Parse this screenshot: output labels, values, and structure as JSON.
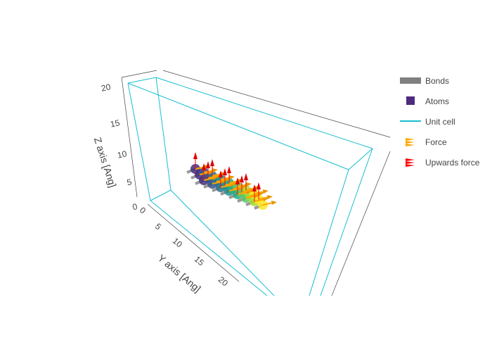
{
  "chart_data": {
    "type": "scatter3d",
    "title": "",
    "axes": {
      "x": {
        "label": "",
        "ticks": []
      },
      "y": {
        "label": "Y axis [Ang]",
        "ticks": [
          "0",
          "5",
          "10",
          "15",
          "20"
        ]
      },
      "z": {
        "label": "Z axis [Ang]",
        "ticks": [
          "0",
          "5",
          "10",
          "15",
          "20"
        ],
        "range": [
          0,
          20
        ]
      }
    },
    "legend": {
      "placement": "right",
      "items": [
        {
          "name": "Bonds",
          "color": "#808080",
          "symbol": "bar"
        },
        {
          "name": "Atoms",
          "color": "#4b2c7f",
          "symbol": "square"
        },
        {
          "name": "Unit cell",
          "color": "#17becf",
          "symbol": "line"
        },
        {
          "name": "Force",
          "color": "#ffa500",
          "symbol": "cone"
        },
        {
          "name": "Upwards force",
          "color": "#ff0000",
          "symbol": "cone"
        }
      ]
    },
    "colors": {
      "unit_cell": "#17becf",
      "bonds": "#808080",
      "force": "#ffa500",
      "upwards_force": "#ff0000"
    }
  }
}
